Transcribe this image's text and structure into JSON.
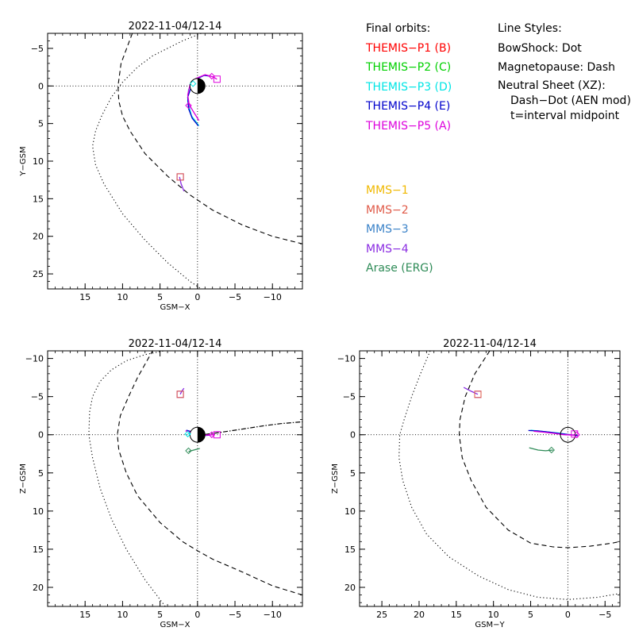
{
  "legend": {
    "final_orbits_title": "Final orbits:",
    "line_styles_title": "Line Styles:",
    "themis": [
      {
        "label": "THEMIS−P1 (B)",
        "color": "#ff0000"
      },
      {
        "label": "THEMIS−P2 (C)",
        "color": "#00d000"
      },
      {
        "label": "THEMIS−P3 (D)",
        "color": "#00e5e5"
      },
      {
        "label": "THEMIS−P4 (E)",
        "color": "#0000cc"
      },
      {
        "label": "THEMIS−P5 (A)",
        "color": "#dd00dd"
      }
    ],
    "styles": {
      "bowshock": "BowShock: Dot",
      "magnetopause": "Magnetopause: Dash",
      "neutral_sheet": "Neutral Sheet (XZ):",
      "neutral_sheet_detail": "Dash−Dot (AEN mod)",
      "neutral_sheet_time": "t=interval midpoint"
    },
    "missions": [
      {
        "label": "MMS−1",
        "color": "#f0b800"
      },
      {
        "label": "MMS−2",
        "color": "#e05a48"
      },
      {
        "label": "MMS−3",
        "color": "#3a82c8"
      },
      {
        "label": "MMS−4",
        "color": "#8a2be2"
      },
      {
        "label": "Arase (ERG)",
        "color": "#2e8b57"
      }
    ]
  },
  "chart_data": [
    {
      "type": "line",
      "title": "2022-11-04/12-14",
      "xlabel": "GSM−X",
      "ylabel": "Y−GSM",
      "xlim": [
        20,
        -14
      ],
      "ylim": [
        -7,
        27
      ],
      "xticks": [
        15,
        10,
        5,
        0,
        -5,
        -10
      ],
      "xticklabels": [
        "15",
        "10",
        "5",
        "0",
        "−5",
        "−10"
      ],
      "yticks": [
        -5,
        0,
        5,
        10,
        15,
        20,
        25
      ],
      "yticklabels": [
        "−5",
        "0",
        "5",
        "10",
        "15",
        "20",
        "25"
      ],
      "series": [
        {
          "style": "bowshock",
          "x": [
            -0.5,
            2,
            4,
            6,
            8,
            10,
            11.5,
            12.8,
            13.6,
            14,
            13.6,
            12.5,
            10,
            7,
            4,
            1,
            -0.5
          ],
          "y": [
            -7,
            -6,
            -5,
            -4,
            -2.5,
            -0.5,
            1.5,
            4,
            6,
            8,
            10.5,
            13,
            17,
            20.5,
            23.5,
            26,
            27
          ]
        },
        {
          "style": "magnetopause",
          "x": [
            8.7,
            10.2,
            10.6,
            10.5,
            10,
            9,
            7,
            4,
            1,
            -2,
            -6,
            -10,
            -14
          ],
          "y": [
            -7,
            -3,
            0,
            2,
            4,
            6,
            9,
            12,
            14.5,
            16.5,
            18.5,
            20,
            21
          ]
        },
        {
          "name": "THEMIS−P3 (D)",
          "color": "#00e5e5",
          "x": [
            -0.2,
            0.8,
            1.3,
            1.2,
            0.6,
            0.3
          ],
          "y": [
            5.3,
            4,
            2,
            0.5,
            -0.5,
            -0.8
          ]
        },
        {
          "name": "THEMIS−P4 (E)",
          "color": "#0000cc",
          "x": [
            -0.1,
            0.7,
            1.2,
            1.3,
            0.8,
            0,
            -0.9,
            -1.7
          ],
          "y": [
            5.3,
            4.3,
            3,
            1.5,
            0,
            -1,
            -1.4,
            -1.3
          ]
        },
        {
          "name": "THEMIS−P5 (A)",
          "color": "#dd00dd",
          "x": [
            -0.2,
            0.5,
            1.1,
            1.3,
            1,
            0.2,
            -1,
            -2.1,
            -2.6
          ],
          "y": [
            4.6,
            3.5,
            2.5,
            1.2,
            -0.2,
            -1,
            -1.5,
            -1.2,
            -0.9
          ]
        },
        {
          "name": "MMS−4",
          "color": "#8a2be2",
          "x": [
            1.8,
            2.2,
            2.4
          ],
          "y": [
            14,
            13,
            12.1
          ]
        }
      ],
      "markers": [
        {
          "shape": "diamond",
          "color": "#dd00dd",
          "x": -1.9,
          "y": -1.3
        },
        {
          "shape": "square",
          "color": "#dd00dd",
          "x": -2.6,
          "y": -0.9
        },
        {
          "shape": "diamond",
          "color": "#dd00dd",
          "x": 1.2,
          "y": 2.6
        },
        {
          "shape": "diamond",
          "color": "#00e5e5",
          "x": 0.6,
          "y": -0.3
        },
        {
          "shape": "square",
          "color": "#8a2be2",
          "x": 2.3,
          "y": 12.1
        },
        {
          "shape": "square",
          "color": "#e05a48",
          "x": 2.3,
          "y": 12.1
        }
      ]
    },
    {
      "type": "line",
      "title": "2022-11-04/12-14",
      "xlabel": "GSM−X",
      "ylabel": "Z−GSM",
      "xlim": [
        20,
        -14
      ],
      "ylim": [
        -11,
        22.5
      ],
      "xticks": [
        15,
        10,
        5,
        0,
        -5,
        -10
      ],
      "xticklabels": [
        "15",
        "10",
        "5",
        "0",
        "−5",
        "−10"
      ],
      "yticks": [
        -10,
        -5,
        0,
        5,
        10,
        15,
        20
      ],
      "yticklabels": [
        "−10",
        "−5",
        "0",
        "5",
        "10",
        "15",
        "20"
      ],
      "series": [
        {
          "style": "bowshock",
          "x": [
            4.3,
            7,
            9.5,
            11.5,
            13,
            14,
            14.5,
            14.4,
            14,
            13,
            11.5,
            9.5,
            7,
            4.5
          ],
          "y": [
            22.5,
            19,
            15,
            11,
            7,
            3,
            0,
            -3,
            -5,
            -7,
            -8.5,
            -9.7,
            -10.5,
            -11
          ]
        },
        {
          "style": "magnetopause",
          "x": [
            -14,
            -10,
            -6,
            -2,
            0,
            2,
            5,
            8,
            9.5,
            10.5,
            10.7,
            10.3,
            9.2,
            8,
            6
          ],
          "y": [
            21,
            19.8,
            18,
            16.3,
            15.2,
            14,
            11.5,
            8,
            5,
            2,
            0,
            -2.5,
            -5,
            -7.5,
            -11
          ]
        },
        {
          "style": "neutral_sheet",
          "x": [
            -1,
            -3,
            -5,
            -7,
            -9,
            -11,
            -14
          ],
          "y": [
            -0.05,
            -0.3,
            -0.6,
            -0.9,
            -1.2,
            -1.45,
            -1.7
          ]
        },
        {
          "name": "THEMIS−P4 (E)",
          "color": "#0000cc",
          "x": [
            1.5,
            0.8,
            0,
            -0.8,
            -1.7
          ],
          "y": [
            -0.6,
            -0.4,
            0,
            0.1,
            0.05
          ]
        },
        {
          "name": "THEMIS−P5 (A)",
          "color": "#dd00dd",
          "x": [
            1.6,
            0.8,
            0,
            -1,
            -2.2
          ],
          "y": [
            -0.5,
            -0.3,
            0,
            0.05,
            0
          ]
        },
        {
          "name": "THEMIS−P3 (D)",
          "color": "#00e5e5",
          "x": [
            1.3,
            0.6,
            0.2
          ],
          "y": [
            -0.2,
            0.2,
            0.1
          ]
        },
        {
          "name": "Arase (ERG)",
          "color": "#2e8b57",
          "x": [
            1.2,
            0.5,
            -0.3
          ],
          "y": [
            2.2,
            2.0,
            1.8
          ]
        },
        {
          "name": "MMS−4",
          "color": "#8a2be2",
          "x": [
            2.3,
            2.1,
            1.8
          ],
          "y": [
            -5.3,
            -5.7,
            -6.1
          ]
        }
      ],
      "markers": [
        {
          "shape": "diamond",
          "color": "#2e8b57",
          "x": 1.2,
          "y": 2.1
        },
        {
          "shape": "diamond",
          "color": "#dd00dd",
          "x": -1.9,
          "y": 0
        },
        {
          "shape": "square",
          "color": "#dd00dd",
          "x": -2.6,
          "y": 0
        },
        {
          "shape": "diamond",
          "color": "#00e5e5",
          "x": 1.3,
          "y": -0.1
        },
        {
          "shape": "square",
          "color": "#8a2be2",
          "x": 2.3,
          "y": -5.3
        },
        {
          "shape": "square",
          "color": "#e05a48",
          "x": 2.3,
          "y": -5.3
        }
      ]
    },
    {
      "type": "line",
      "title": "2022-11-04/12-14",
      "xlabel": "GSM−Y",
      "ylabel": "Z−GSM",
      "xlim": [
        28,
        -7
      ],
      "ylim": [
        -11,
        22.5
      ],
      "xticks": [
        25,
        20,
        15,
        10,
        5,
        0,
        -5
      ],
      "xticklabels": [
        "25",
        "20",
        "15",
        "10",
        "5",
        "0",
        "−5"
      ],
      "yticks": [
        -10,
        -5,
        0,
        5,
        10,
        15,
        20
      ],
      "yticklabels": [
        "−10",
        "−5",
        "0",
        "5",
        "10",
        "15",
        "20"
      ],
      "series": [
        {
          "style": "bowshock",
          "x": [
            18.5,
            19.8,
            21,
            22,
            22.6,
            22.7,
            22.2,
            21,
            19,
            16,
            12,
            8,
            4,
            0,
            -4,
            -7
          ],
          "y": [
            -11,
            -8,
            -5,
            -2,
            0,
            3,
            6,
            9.5,
            13,
            16,
            18.5,
            20.3,
            21.3,
            21.6,
            21.3,
            20.8
          ]
        },
        {
          "style": "magnetopause",
          "x": [
            10.5,
            12.5,
            13.8,
            14.5,
            14.6,
            14.2,
            13,
            11,
            8,
            5,
            2,
            0,
            -3,
            -6,
            -7
          ],
          "y": [
            -11,
            -8,
            -5,
            -2,
            0,
            3,
            6,
            9.5,
            12.5,
            14.2,
            14.7,
            14.8,
            14.6,
            14.2,
            14
          ]
        },
        {
          "name": "THEMIS−P3 (D)",
          "color": "#00e5e5",
          "x": [
            5,
            3,
            1.5,
            0.4
          ],
          "y": [
            -0.6,
            -0.4,
            -0.25,
            -0.1
          ]
        },
        {
          "name": "THEMIS−P4 (E)",
          "color": "#0000cc",
          "x": [
            5.3,
            4,
            2.5,
            1,
            -1.3
          ],
          "y": [
            -0.55,
            -0.5,
            -0.35,
            -0.15,
            0.1
          ]
        },
        {
          "name": "THEMIS−P5 (A)",
          "color": "#dd00dd",
          "x": [
            4.6,
            3.4,
            2,
            0.5,
            -0.9
          ],
          "y": [
            -0.45,
            -0.35,
            -0.2,
            0,
            0.05
          ]
        },
        {
          "name": "Arase (ERG)",
          "color": "#2e8b57",
          "x": [
            5.2,
            4,
            3,
            2
          ],
          "y": [
            1.7,
            2.0,
            2.1,
            2.0
          ]
        },
        {
          "name": "MMS−4",
          "color": "#8a2be2",
          "x": [
            12.1,
            13,
            14
          ],
          "y": [
            -5.3,
            -5.7,
            -6.2
          ]
        }
      ],
      "markers": [
        {
          "shape": "diamond",
          "color": "#2e8b57",
          "x": 2.2,
          "y": 2.0
        },
        {
          "shape": "diamond",
          "color": "#dd00dd",
          "x": -1.2,
          "y": 0
        },
        {
          "shape": "square",
          "color": "#dd00dd",
          "x": -0.9,
          "y": -0.1
        },
        {
          "shape": "square",
          "color": "#8a2be2",
          "x": 12.1,
          "y": -5.3
        },
        {
          "shape": "square",
          "color": "#e05a48",
          "x": 12.1,
          "y": -5.3
        }
      ]
    }
  ]
}
